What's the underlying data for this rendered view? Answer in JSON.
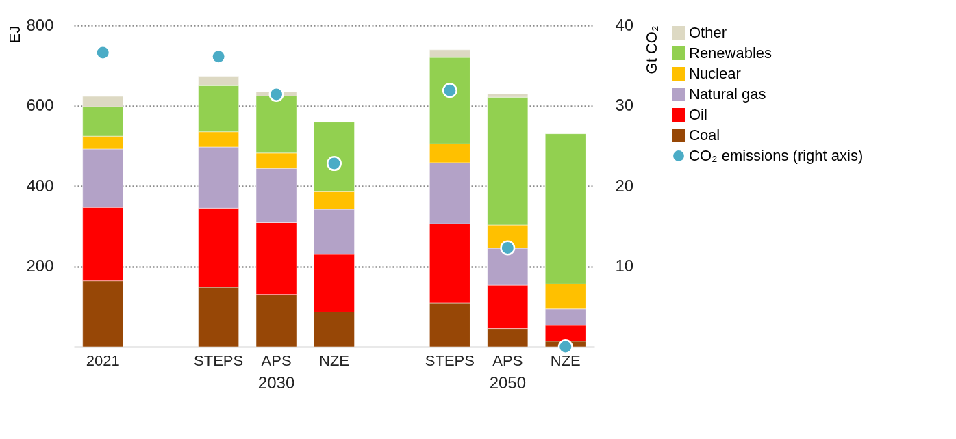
{
  "chart_data": {
    "type": "bar",
    "stacked": true,
    "categories": [
      "2021",
      null,
      "STEPS",
      "APS",
      "NZE",
      null,
      "STEPS",
      "APS",
      "NZE"
    ],
    "series": [
      {
        "name": "Coal",
        "color": "#974706",
        "values": [
          164,
          null,
          148,
          130,
          86,
          null,
          109,
          45,
          14
        ]
      },
      {
        "name": "Oil",
        "color": "#ff0000",
        "values": [
          183,
          null,
          197,
          179,
          144,
          null,
          197,
          108,
          39
        ]
      },
      {
        "name": "Natural gas",
        "color": "#b3a2c7",
        "values": [
          145,
          null,
          152,
          135,
          112,
          null,
          152,
          92,
          41
        ]
      },
      {
        "name": "Nuclear",
        "color": "#ffc000",
        "values": [
          32,
          null,
          38,
          38,
          44,
          null,
          47,
          58,
          62
        ]
      },
      {
        "name": "Renewables",
        "color": "#92d050",
        "values": [
          73,
          null,
          115,
          142,
          173,
          null,
          215,
          318,
          374
        ]
      },
      {
        "name": "Other",
        "color": "#ddd9c3",
        "values": [
          26,
          null,
          23,
          11,
          null,
          null,
          19,
          8,
          null
        ]
      },
      {
        "name": "CO₂ emissions (right axis)",
        "type": "scatter",
        "axis": "y2",
        "marker": "circle",
        "color": "#4bacc6",
        "values": [
          36.6,
          null,
          36.1,
          31.4,
          22.8,
          null,
          31.9,
          12.3,
          0
        ]
      }
    ],
    "ylabel": "EJ",
    "y2label": "Gt CO₂",
    "ylim": [
      0,
      800
    ],
    "yticks": [
      200,
      400,
      600,
      800
    ],
    "y2lim": [
      0,
      40
    ],
    "y2ticks": [
      10,
      20,
      30,
      40
    ],
    "grid": "y",
    "legend": "top right",
    "annotations": [
      "2030",
      "2050"
    ]
  }
}
